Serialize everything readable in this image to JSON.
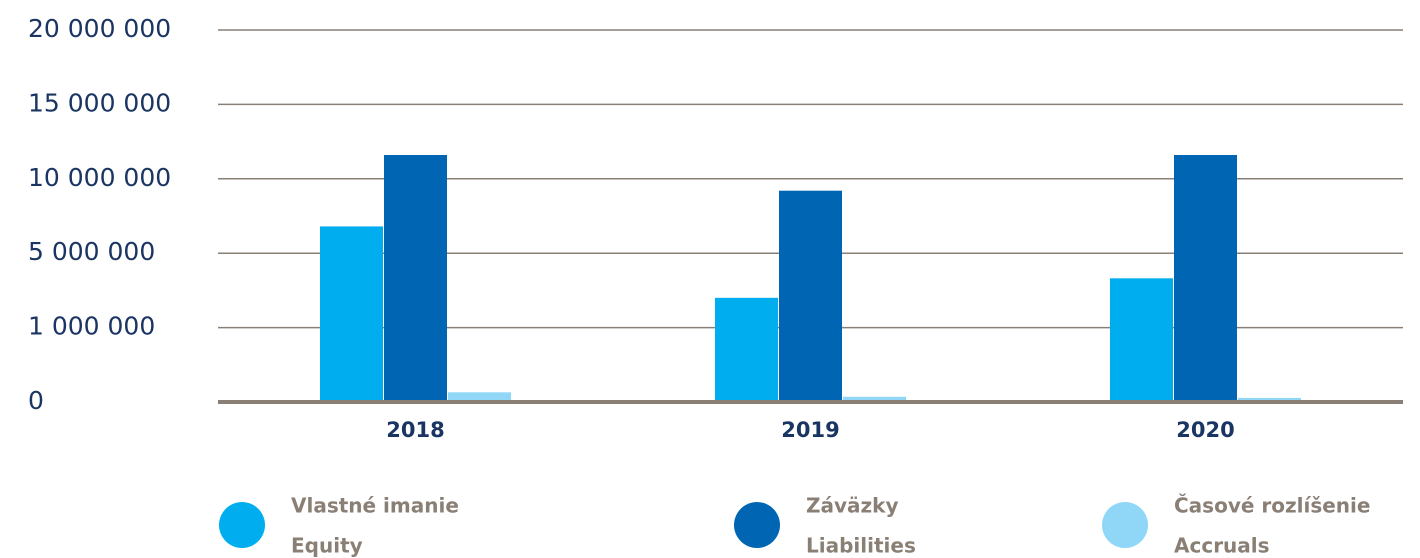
{
  "chart_data": {
    "type": "bar",
    "categories": [
      "2018",
      "2019",
      "2020"
    ],
    "series": [
      {
        "name": "Vlastné imanie",
        "subname": "Equity",
        "color": "#00aeef",
        "values": [
          6800000,
          2600000,
          3650000
        ]
      },
      {
        "name": "Záväzky",
        "subname": "Liabilities",
        "color": "#0066b3",
        "values": [
          11600000,
          9200000,
          11600000
        ]
      },
      {
        "name": "Časové rozlíšenie",
        "subname": "Accruals",
        "color": "#8fd6f7",
        "values": [
          130000,
          70000,
          55000
        ]
      }
    ],
    "ylim": [
      0,
      20000000
    ],
    "yticks": [
      0,
      {
        "value": 1000000,
        "label": "1 000 000"
      },
      {
        "value": 5000000,
        "label": "5 000 000"
      },
      {
        "value": 10000000,
        "label": "10 000 000"
      },
      {
        "value": 15000000,
        "label": "15 000 000"
      },
      {
        "value": 20000000,
        "label": "20 000 000"
      }
    ],
    "grid": true
  }
}
